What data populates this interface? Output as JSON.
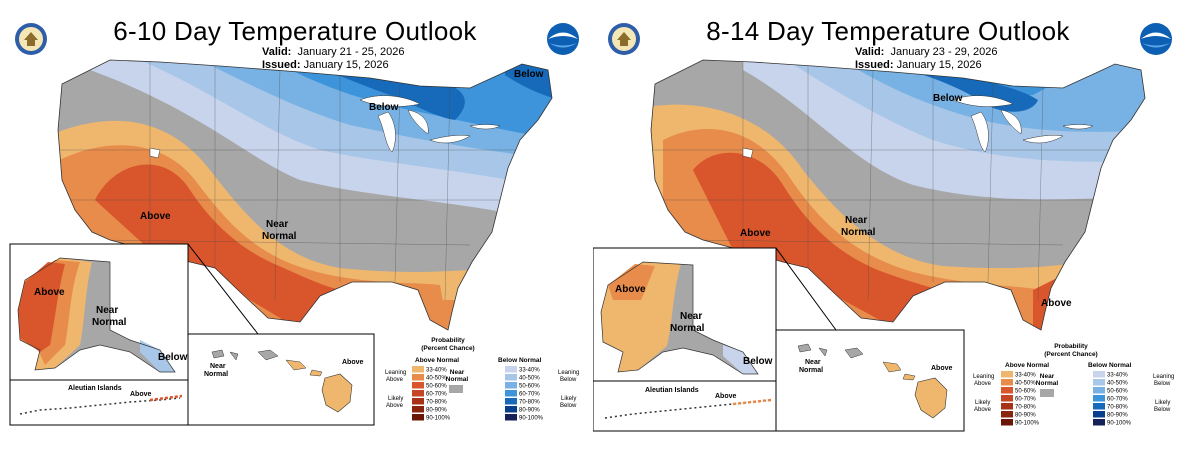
{
  "colors": {
    "above": [
      "#efb76d",
      "#e88c4b",
      "#d9562d",
      "#c44625",
      "#a83217",
      "#8a240d",
      "#6b1506"
    ],
    "below": [
      "#c8d4ec",
      "#a7c6e8",
      "#78b2e4",
      "#3d94da",
      "#166ab9",
      "#083f8c",
      "#16215a"
    ],
    "near": "#a7a7a7",
    "land": "#ffffff",
    "water": "#ffffff"
  },
  "legend": {
    "title": "Probability",
    "subtitle": "(Percent Chance)",
    "above_header": "Above Normal",
    "below_header": "Below Normal",
    "near_label_1": "Near",
    "near_label_2": "Normal",
    "above_bins": [
      "33-40%",
      "40-50%",
      "50-60%",
      "60-70%",
      "70-80%",
      "80-90%",
      "90-100%"
    ],
    "below_bins": [
      "33-40%",
      "40-50%",
      "50-60%",
      "60-70%",
      "70-80%",
      "80-90%",
      "90-100%"
    ],
    "leaning_1": "Leaning",
    "leaning_above_2": "Above",
    "leaning_below_2": "Below",
    "likely_1": "Likely",
    "likely_above_2": "Above",
    "likely_below_2": "Below"
  },
  "panels": [
    {
      "title": "6-10 Day Temperature Outlook",
      "valid_label": "Valid:",
      "valid_value": "January 21 - 25, 2026",
      "issued_label": "Issued:",
      "issued_value": "January 15, 2026",
      "labels": {
        "conus_below_ne": "Below",
        "conus_below_lakes": "Below",
        "conus_above": "Above",
        "conus_near_1": "Near",
        "conus_near_2": "Normal",
        "ak_above": "Above",
        "ak_near_1": "Near",
        "ak_near_2": "Normal",
        "ak_below": "Below",
        "aleutian_title": "Aleutian Islands",
        "aleutian_above": "Above",
        "hi_near_1": "Near",
        "hi_near_2": "Normal",
        "hi_above": "Above"
      }
    },
    {
      "title": "8-14 Day Temperature Outlook",
      "valid_label": "Valid:",
      "valid_value": "January 23 - 29, 2026",
      "issued_label": "Issued:",
      "issued_value": "January 15, 2026",
      "labels": {
        "conus_below_lakes": "Below",
        "conus_near_1": "Near",
        "conus_near_2": "Normal",
        "conus_above_sw": "Above",
        "conus_above_fl": "Above",
        "ak_above": "Above",
        "ak_near_1": "Near",
        "ak_near_2": "Normal",
        "ak_below": "Below",
        "aleutian_title": "Aleutian Islands",
        "aleutian_above": "Above",
        "hi_near_1": "Near",
        "hi_near_2": "Normal",
        "hi_above": "Above"
      }
    }
  ]
}
